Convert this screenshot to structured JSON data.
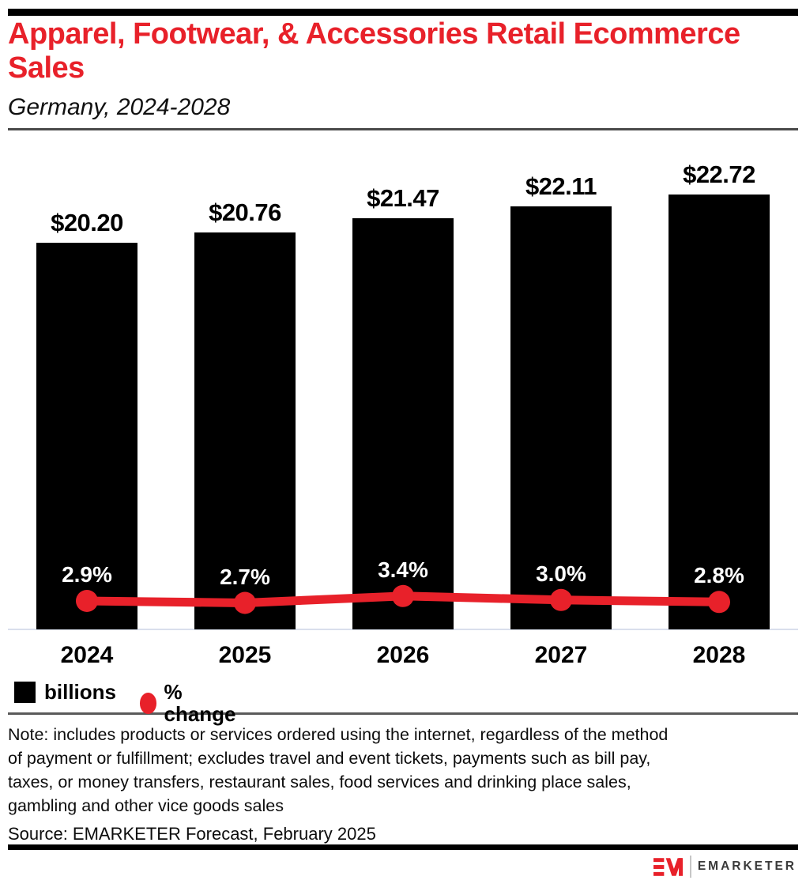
{
  "header": {
    "bar_color": "#000000",
    "title_line1": "Apparel, Footwear, & Accessories Retail Ecommerce",
    "title_line2": "Sales",
    "title_color": "#e8212a",
    "subtitle": "Germany, 2024-2028"
  },
  "chart_data": {
    "type": "bar",
    "categories": [
      "2024",
      "2025",
      "2026",
      "2027",
      "2028"
    ],
    "series": [
      {
        "name": "billions",
        "type": "bar",
        "color": "#000000",
        "values": [
          20.2,
          20.76,
          21.47,
          22.11,
          22.72
        ],
        "labels": [
          "$20.20",
          "$20.76",
          "$21.47",
          "$22.11",
          "$22.72"
        ]
      },
      {
        "name": "% change",
        "type": "line",
        "color": "#e8212a",
        "values": [
          2.9,
          2.7,
          3.4,
          3.0,
          2.8
        ],
        "labels": [
          "2.9%",
          "2.7%",
          "3.4%",
          "3.0%",
          "2.8%"
        ]
      }
    ],
    "title": "Apparel, Footwear, & Accessories Retail Ecommerce Sales",
    "subtitle": "Germany, 2024-2028",
    "xlabel": "",
    "ylabel": "",
    "ylim": [
      0,
      23
    ],
    "grid": false,
    "legend_position": "bottom-left",
    "units": "billions of US dollars"
  },
  "legend": {
    "items": [
      {
        "label": "billions",
        "swatch": "square",
        "color": "#000000"
      },
      {
        "label": "% change",
        "swatch": "circle",
        "color": "#e8212a"
      }
    ]
  },
  "footnote": {
    "note_lines": [
      "Note: includes products or services ordered using the internet, regardless of the method",
      "of payment or fulfillment; excludes travel and event tickets, payments such as bill pay,",
      "taxes, or money transfers, restaurant sales, food services and drinking place sales,",
      "gambling and other vice goods sales"
    ],
    "source": "Source: EMARKETER Forecast, February 2025"
  },
  "footer": {
    "brand": "EMARKETER",
    "logo": "em-monogram",
    "logo_color": "#e8212a"
  }
}
